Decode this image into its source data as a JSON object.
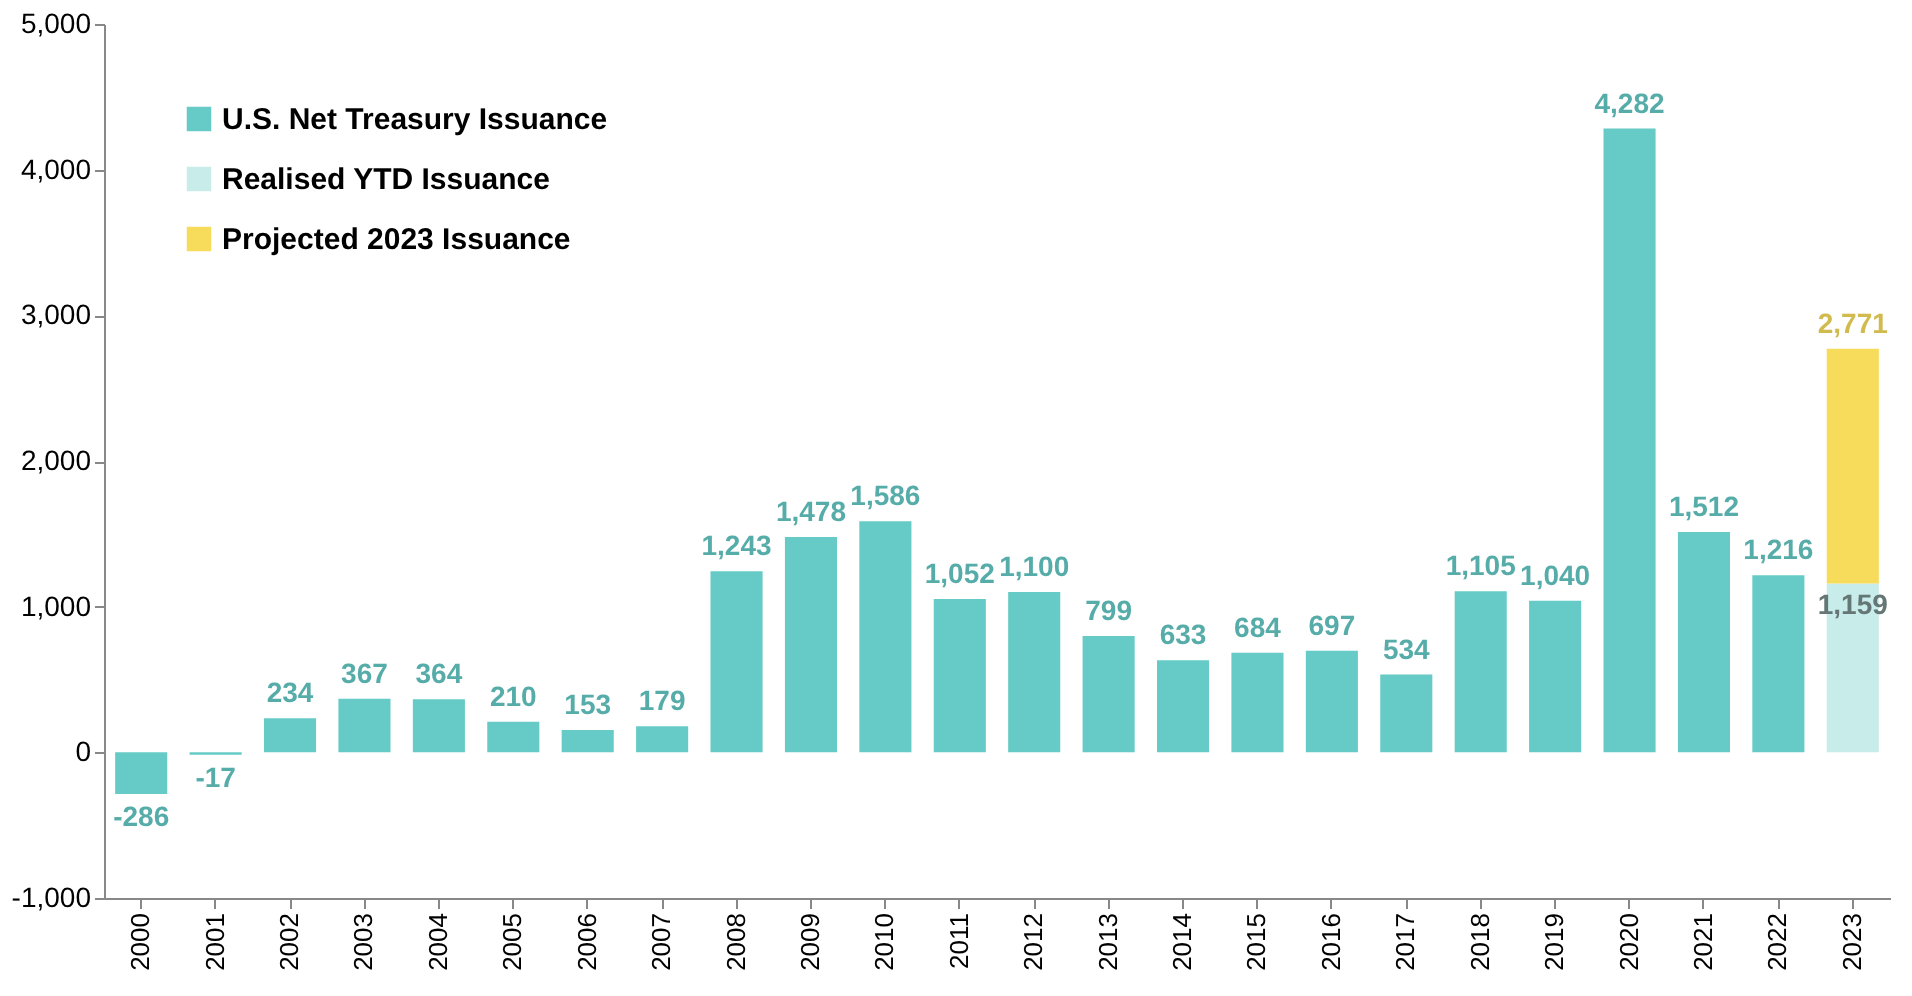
{
  "chart_data": {
    "type": "bar",
    "stacked": true,
    "categories": [
      "2000",
      "2001",
      "2002",
      "2003",
      "2004",
      "2005",
      "2006",
      "2007",
      "2008",
      "2009",
      "2010",
      "2011",
      "2012",
      "2013",
      "2014",
      "2015",
      "2016",
      "2017",
      "2018",
      "2019",
      "2020",
      "2021",
      "2022",
      "2023"
    ],
    "series": [
      {
        "name": "U.S. Net Treasury Issuance",
        "color": "#66cbc6",
        "values": [
          -286,
          -17,
          234,
          367,
          364,
          210,
          153,
          179,
          1243,
          1478,
          1586,
          1052,
          1100,
          799,
          633,
          684,
          697,
          534,
          1105,
          1040,
          4282,
          1512,
          1216,
          null
        ],
        "value_labels": [
          "-286",
          "-17",
          "234",
          "367",
          "364",
          "210",
          "153",
          "179",
          "1,243",
          "1,478",
          "1,586",
          "1,052",
          "1,100",
          "799",
          "633",
          "684",
          "697",
          "534",
          "1,105",
          "1,040",
          "4,282",
          "1,512",
          "1,216",
          null
        ]
      },
      {
        "name": "Realised YTD Issuance",
        "color": "#c8ecea",
        "values": [
          null,
          null,
          null,
          null,
          null,
          null,
          null,
          null,
          null,
          null,
          null,
          null,
          null,
          null,
          null,
          null,
          null,
          null,
          null,
          null,
          null,
          null,
          null,
          1159
        ],
        "value_labels": [
          null,
          null,
          null,
          null,
          null,
          null,
          null,
          null,
          null,
          null,
          null,
          null,
          null,
          null,
          null,
          null,
          null,
          null,
          null,
          null,
          null,
          null,
          null,
          "1,159"
        ]
      },
      {
        "name": "Projected 2023 Issuance",
        "color": "#f7dc5c",
        "values": [
          null,
          null,
          null,
          null,
          null,
          null,
          null,
          null,
          null,
          null,
          null,
          null,
          null,
          null,
          null,
          null,
          null,
          null,
          null,
          null,
          null,
          null,
          null,
          1612
        ]
      }
    ],
    "totals": [
      null,
      null,
      null,
      null,
      null,
      null,
      null,
      null,
      null,
      null,
      null,
      null,
      null,
      null,
      null,
      null,
      null,
      null,
      null,
      null,
      null,
      null,
      null,
      "2,771"
    ],
    "ylim": [
      -1000,
      5000
    ],
    "yticks": [
      {
        "value": -1000,
        "label": "-1,000"
      },
      0,
      {
        "value": 1000,
        "label": "1,000"
      },
      {
        "value": 2000,
        "label": "2,000"
      },
      {
        "value": 3000,
        "label": "3,000"
      },
      {
        "value": 4000,
        "label": "4,000"
      },
      {
        "value": 5000,
        "label": "5,000"
      }
    ],
    "grid": false,
    "legend": "top left"
  }
}
